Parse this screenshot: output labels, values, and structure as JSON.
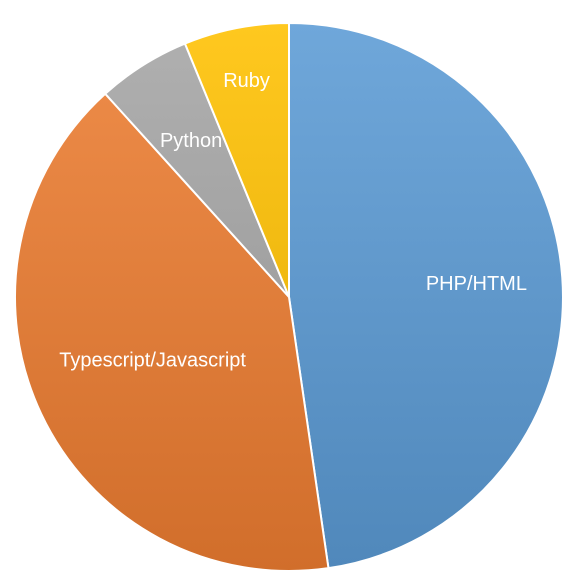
{
  "chart_data": {
    "type": "pie",
    "labels": [
      "PHP/HTML",
      "Typescript/Javascript",
      "Python",
      "Ruby"
    ],
    "values": [
      47.7,
      40.6,
      5.5,
      6.2
    ],
    "colors": [
      "#5B9BD5",
      "#ED7D31",
      "#A5A5A5",
      "#FFC000"
    ],
    "legend": "none",
    "start_angle_deg": 0,
    "direction": "clockwise"
  }
}
